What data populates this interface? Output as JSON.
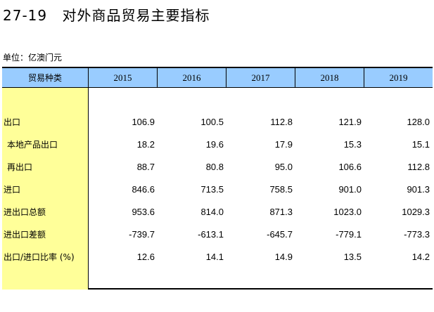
{
  "title": {
    "number": "27-19",
    "text": "对外商品贸易主要指标"
  },
  "unit": "单位：亿澳门元",
  "table": {
    "header": {
      "category": "贸易种类",
      "years": [
        "2015",
        "2016",
        "2017",
        "2018",
        "2019"
      ]
    },
    "rows": [
      {
        "label": "出口",
        "values": [
          "106.9",
          "100.5",
          "112.8",
          "121.9",
          "128.0"
        ]
      },
      {
        "label": "本地产品出口",
        "values": [
          "18.2",
          "19.6",
          "17.9",
          "15.3",
          "15.1"
        ]
      },
      {
        "label": "再出口",
        "values": [
          "88.7",
          "80.8",
          "95.0",
          "106.6",
          "112.8"
        ]
      },
      {
        "label": "进口",
        "values": [
          "846.6",
          "713.5",
          "758.5",
          "901.0",
          "901.3"
        ]
      },
      {
        "label": "进出口总额",
        "values": [
          "953.6",
          "814.0",
          "871.3",
          "1023.0",
          "1029.3"
        ]
      },
      {
        "label": "进出口差额",
        "values": [
          "-739.7",
          "-613.1",
          "-645.7",
          "-779.1",
          "-773.3"
        ]
      },
      {
        "label": "出口/进口比率 (%)",
        "values": [
          "12.6",
          "14.1",
          "14.9",
          "13.5",
          "14.2"
        ]
      }
    ]
  },
  "colors": {
    "header_bg": "#99ccff",
    "label_col_bg": "#ffff99"
  }
}
